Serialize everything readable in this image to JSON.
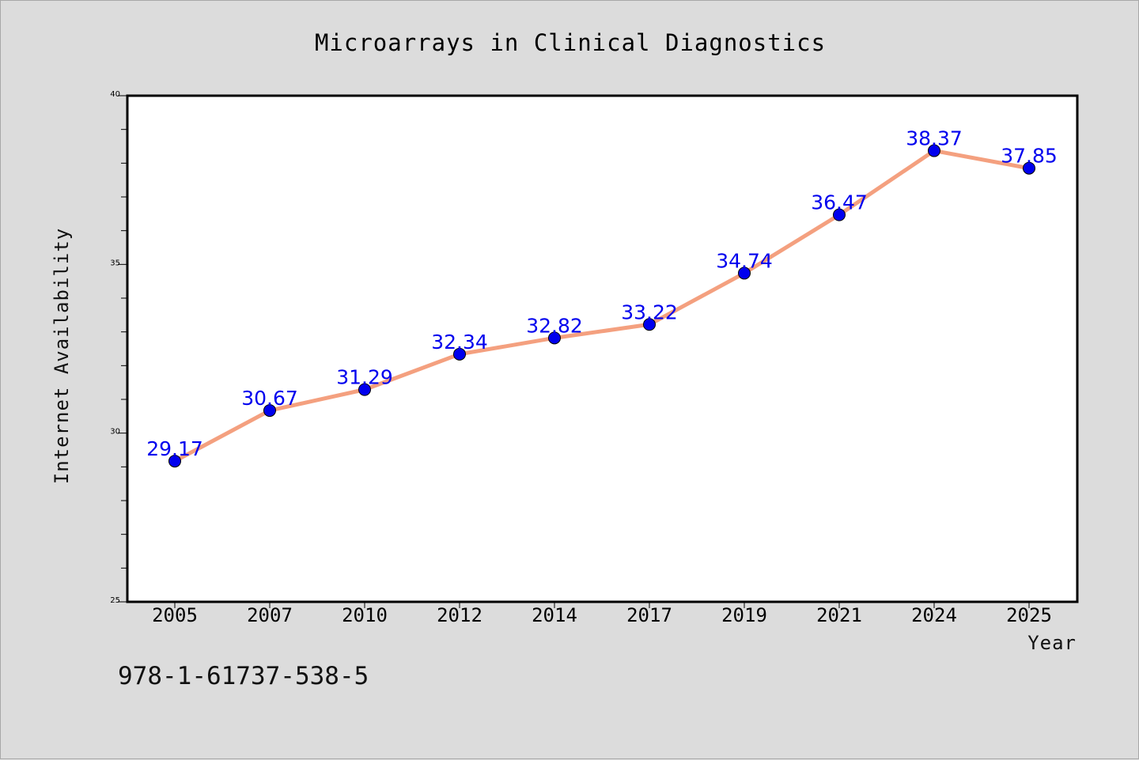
{
  "chart_data": {
    "type": "line",
    "title": "Microarrays in Clinical Diagnostics",
    "xlabel": "Year",
    "ylabel": "Internet Availability",
    "categories": [
      "2005",
      "2007",
      "2010",
      "2012",
      "2014",
      "2017",
      "2019",
      "2021",
      "2024",
      "2025"
    ],
    "series": [
      {
        "values": [
          29.17,
          30.67,
          31.29,
          32.34,
          32.82,
          33.22,
          34.74,
          36.47,
          38.37,
          37.85
        ],
        "data_labels": [
          "29.17",
          "30.67",
          "31.29",
          "32.34",
          "32.82",
          "33.22",
          "34.74",
          "36.47",
          "38.37",
          "37.85"
        ],
        "line_color": "#f4a07f",
        "marker_color": "#0000ee"
      }
    ],
    "ylim": [
      25,
      40
    ],
    "yticks": [
      25,
      30,
      35,
      40
    ],
    "y_minor_step": 1,
    "grid": false,
    "legend": "none",
    "data_label_color": "#0000ee"
  },
  "footnote": "978-1-61737-538-5",
  "colors": {
    "background": "#dcdcdc",
    "plot_background": "#ffffff"
  }
}
